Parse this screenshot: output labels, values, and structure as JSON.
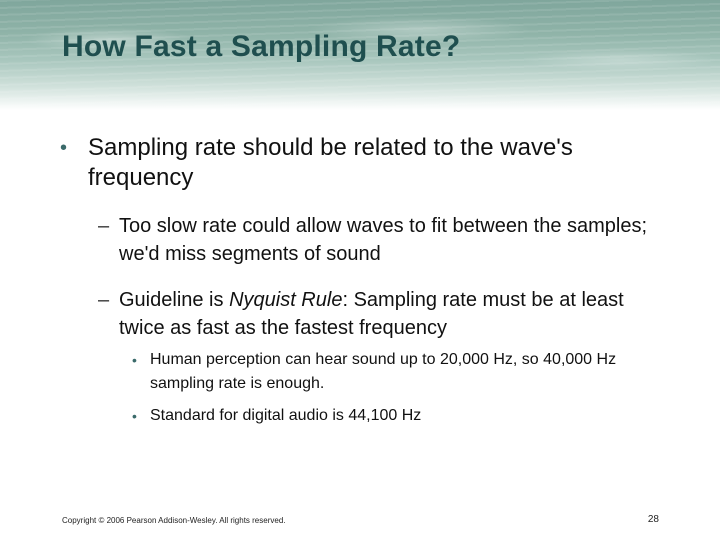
{
  "slide": {
    "title": "How Fast a Sampling Rate?",
    "bullet_main": "Sampling rate should be related to the wave's frequency",
    "sub_too_slow": "Too slow rate could allow waves to fit between the samples; we'd miss segments of sound",
    "sub_guideline_prefix": "Guideline is ",
    "sub_guideline_term": "Nyquist Rule",
    "sub_guideline_suffix": ":  Sampling rate must be at least twice as fast as the fastest frequency",
    "subsub_human": "Human perception can hear sound up to 20,000 Hz, so 40,000 Hz sampling rate is enough.",
    "subsub_standard": "Standard for digital audio is 44,100 Hz"
  },
  "footer": {
    "copyright": "Copyright © 2006 Pearson Addison-Wesley. All rights reserved.",
    "page_number": "28"
  },
  "marks": {
    "level1": "•",
    "level2": "–",
    "level3": "•"
  },
  "colors": {
    "title": "#1f4f4f",
    "header_band": "#8fb3a8"
  }
}
